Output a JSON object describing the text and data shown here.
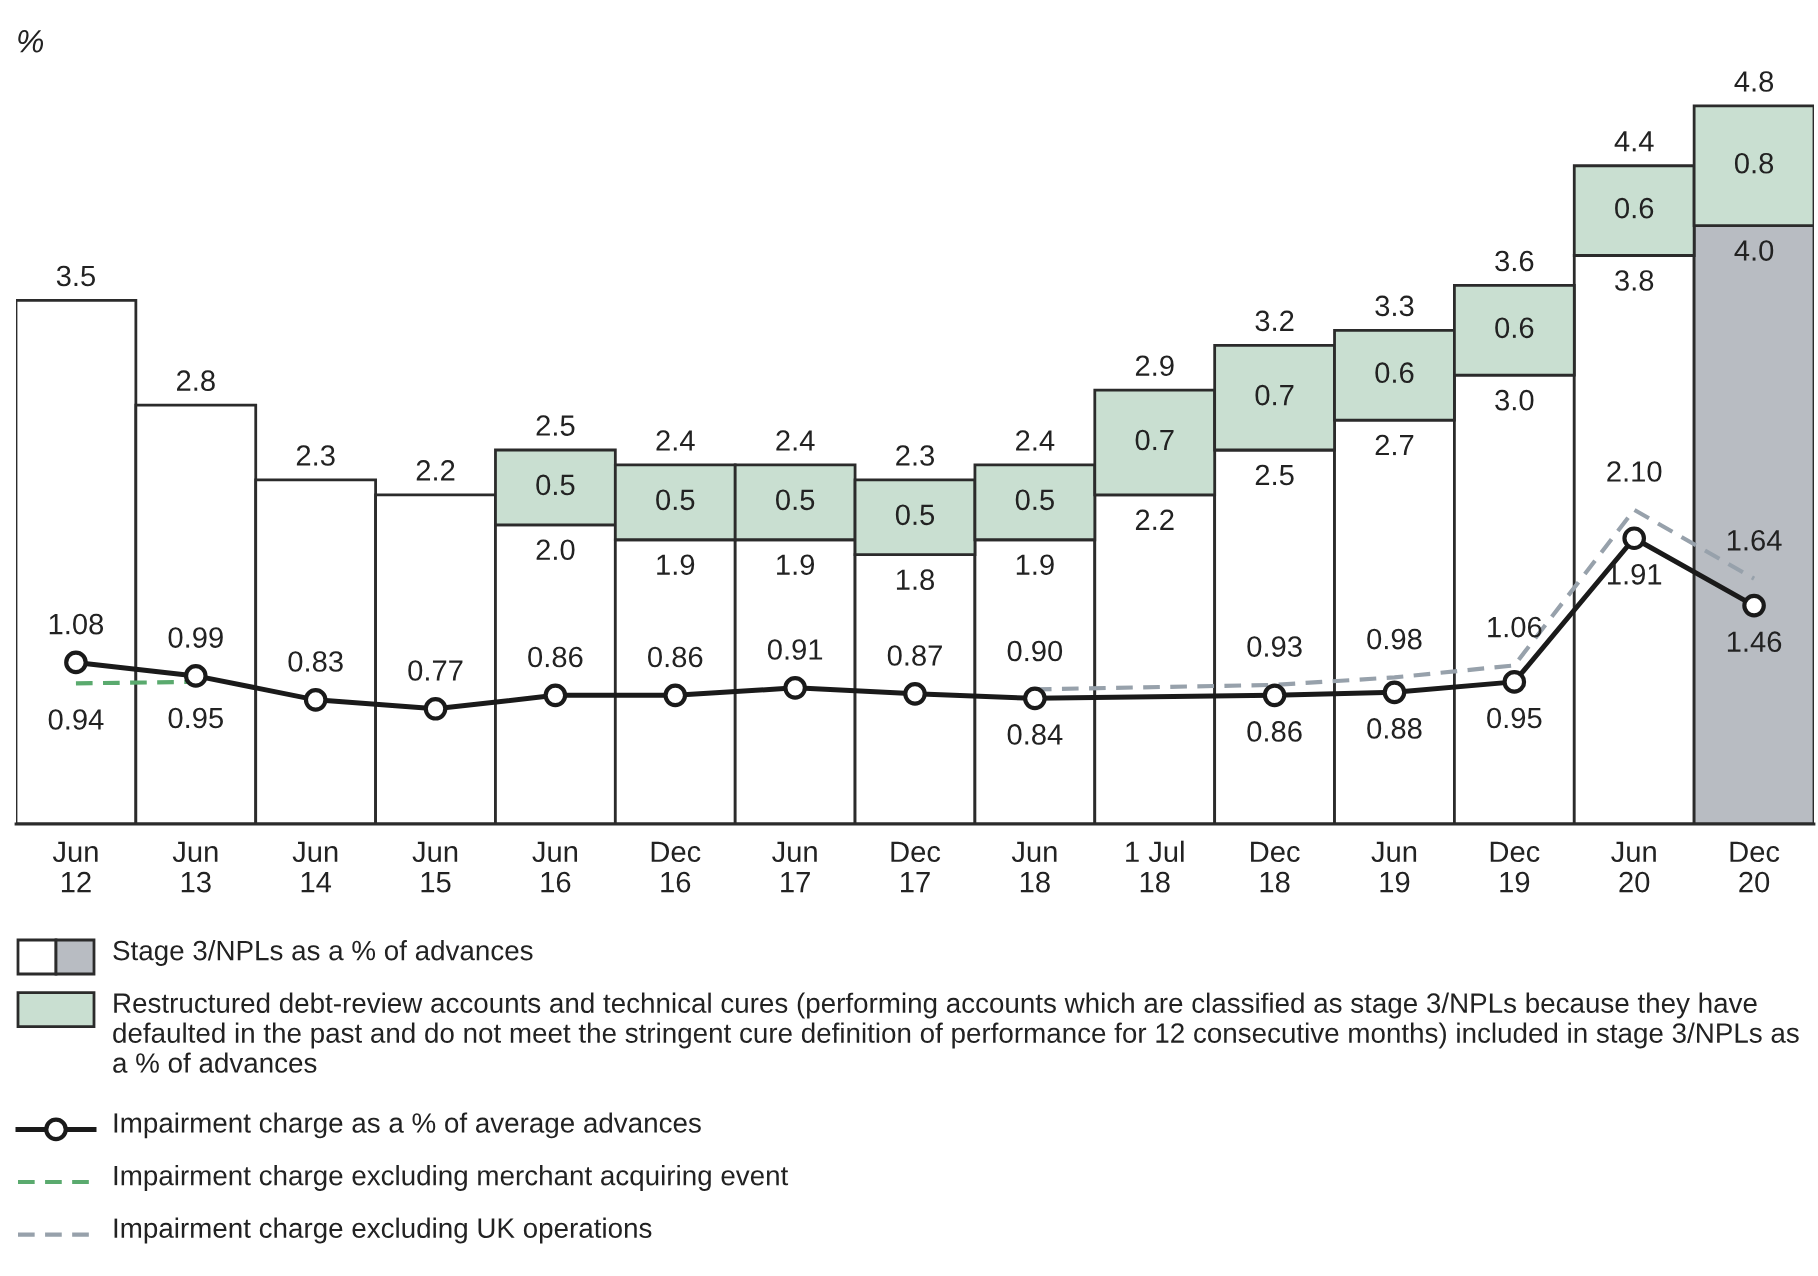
{
  "chart_data": {
    "type": "bar",
    "ylabel": "%",
    "categories": [
      "Jun\n12",
      "Jun\n13",
      "Jun\n14",
      "Jun\n15",
      "Jun\n16",
      "Dec\n16",
      "Jun\n17",
      "Dec\n17",
      "Jun\n18",
      "1 Jul\n18",
      "Dec\n18",
      "Jun\n19",
      "Dec\n19",
      "Jun\n20",
      "Dec\n20"
    ],
    "stacked": true,
    "tick_labels": "x",
    "legend": "bottom",
    "totals": [
      "3.5",
      "2.8",
      "2.3",
      "2.2",
      "2.5",
      "2.4",
      "2.4",
      "2.3",
      "2.4",
      "2.9",
      "3.2",
      "3.3",
      "3.6",
      "4.4",
      "4.8"
    ],
    "series": [
      {
        "name": "Stage 3/NPLs as a % of advances",
        "colors": [
          "#ffffff",
          "#ffffff",
          "#ffffff",
          "#ffffff",
          "#ffffff",
          "#ffffff",
          "#ffffff",
          "#ffffff",
          "#ffffff",
          "#ffffff",
          "#ffffff",
          "#ffffff",
          "#ffffff",
          "#ffffff",
          "#b8bcc2"
        ],
        "values": [
          3.5,
          2.8,
          2.3,
          2.2,
          2.0,
          1.9,
          1.9,
          1.8,
          1.9,
          2.2,
          2.5,
          2.7,
          3.0,
          3.8,
          4.0
        ],
        "value_labels": [
          null,
          null,
          null,
          null,
          "2.0",
          "1.9",
          "1.9",
          "1.8",
          "1.9",
          "2.2",
          "2.5",
          "2.7",
          "3.0",
          "3.8",
          "4.0"
        ]
      },
      {
        "name": "Restructured debt-review accounts and technical cures (performing accounts which are classified as stage 3/NPLs because they have defaulted in the past and do not meet the stringent cure definition of performance for 12 consecutive months) included in stage 3/NPLs as a % of advances",
        "color": "#c9dfd1",
        "values": [
          null,
          null,
          null,
          null,
          0.5,
          0.5,
          0.5,
          0.5,
          0.5,
          0.7,
          0.7,
          0.6,
          0.6,
          0.6,
          0.8
        ],
        "value_labels": [
          null,
          null,
          null,
          null,
          "0.5",
          "0.5",
          "0.5",
          "0.5",
          "0.5",
          "0.7",
          "0.7",
          "0.6",
          "0.6",
          "0.6",
          "0.8"
        ]
      },
      {
        "name": "Impairment charge as a % of average advances",
        "type": "line",
        "color": "#1a1a1a",
        "marker": "circle",
        "line_style": "solid",
        "values": [
          1.08,
          0.99,
          0.83,
          0.77,
          0.86,
          0.86,
          0.91,
          0.87,
          0.84,
          null,
          0.86,
          0.88,
          0.95,
          1.91,
          1.46
        ],
        "value_labels": [
          "1.08",
          "0.99",
          "0.83",
          "0.77",
          "0.86",
          "0.86",
          "0.91",
          "0.87",
          "0.84",
          null,
          "0.86",
          "0.88",
          "0.95",
          "1.91",
          "1.46"
        ]
      },
      {
        "name": "Impairment charge excluding merchant acquiring event",
        "type": "line",
        "color": "#5aaa6e",
        "marker": "none",
        "line_style": "dashed",
        "values": [
          0.94,
          0.95,
          null,
          null,
          null,
          null,
          null,
          null,
          null,
          null,
          null,
          null,
          null,
          null,
          null
        ],
        "value_labels": [
          "0.94",
          "0.95",
          null,
          null,
          null,
          null,
          null,
          null,
          null,
          null,
          null,
          null,
          null,
          null,
          null
        ]
      },
      {
        "name": "Impairment charge excluding UK operations",
        "type": "line",
        "color": "#97a1ab",
        "marker": "none",
        "line_style": "dashed",
        "values": [
          null,
          null,
          null,
          null,
          null,
          null,
          null,
          null,
          0.9,
          null,
          0.93,
          0.98,
          1.06,
          2.1,
          1.64
        ],
        "value_labels": [
          null,
          null,
          null,
          null,
          null,
          null,
          null,
          null,
          "0.90",
          null,
          "0.93",
          "0.98",
          "1.06",
          "2.10",
          "1.64"
        ]
      }
    ]
  }
}
